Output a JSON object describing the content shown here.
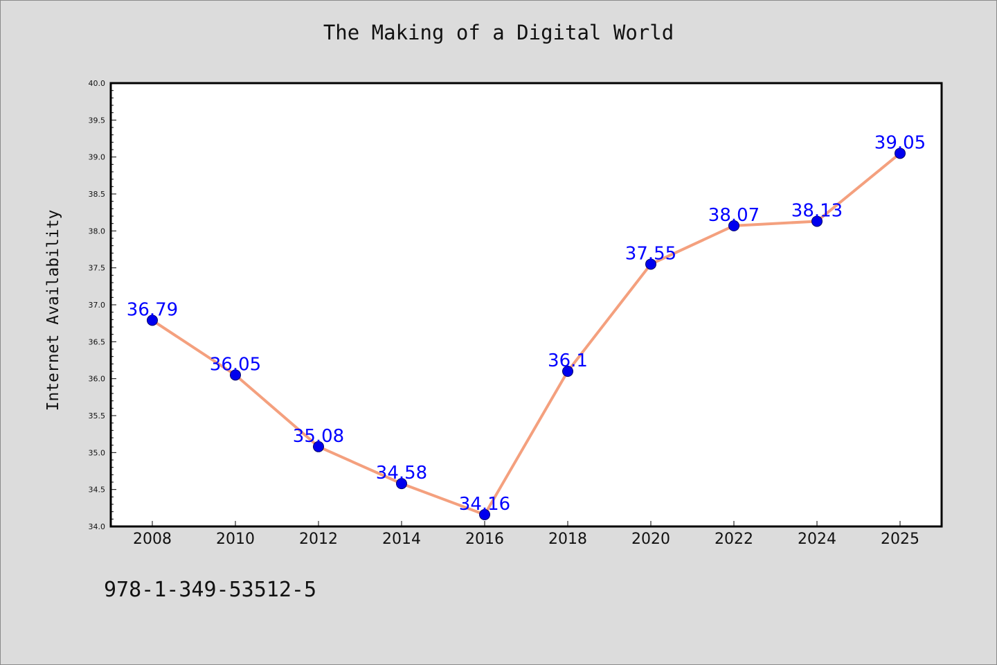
{
  "chart_data": {
    "type": "line",
    "title": "The Making of a Digital World",
    "xlabel": "",
    "ylabel": "Internet Availability",
    "categories": [
      "2008",
      "2010",
      "2012",
      "2014",
      "2016",
      "2018",
      "2020",
      "2022",
      "2024",
      "2025"
    ],
    "series": [
      {
        "values": [
          36.79,
          36.05,
          35.08,
          34.58,
          34.16,
          36.1,
          37.55,
          38.07,
          38.13,
          39.05
        ],
        "labels": [
          "36.79",
          "36.05",
          "35.08",
          "34.58",
          "34.16",
          "36.1",
          "37.55",
          "38.07",
          "38.13",
          "39.05"
        ],
        "line_color": "#f4a07e",
        "marker_color": "#0000ee",
        "label_color": "#0000ff"
      }
    ],
    "ylim": [
      34.0,
      40.0
    ],
    "yticks": [
      "34.0",
      "34.5",
      "35.0",
      "35.5",
      "36.0",
      "36.5",
      "37.0",
      "37.5",
      "38.0",
      "38.5",
      "39.0",
      "39.5",
      "40.0"
    ],
    "grid": false,
    "legend": "none",
    "background": "#dcdcdc",
    "plot_background": "#ffffff"
  },
  "footer": {
    "isbn": "978-1-349-53512-5"
  }
}
